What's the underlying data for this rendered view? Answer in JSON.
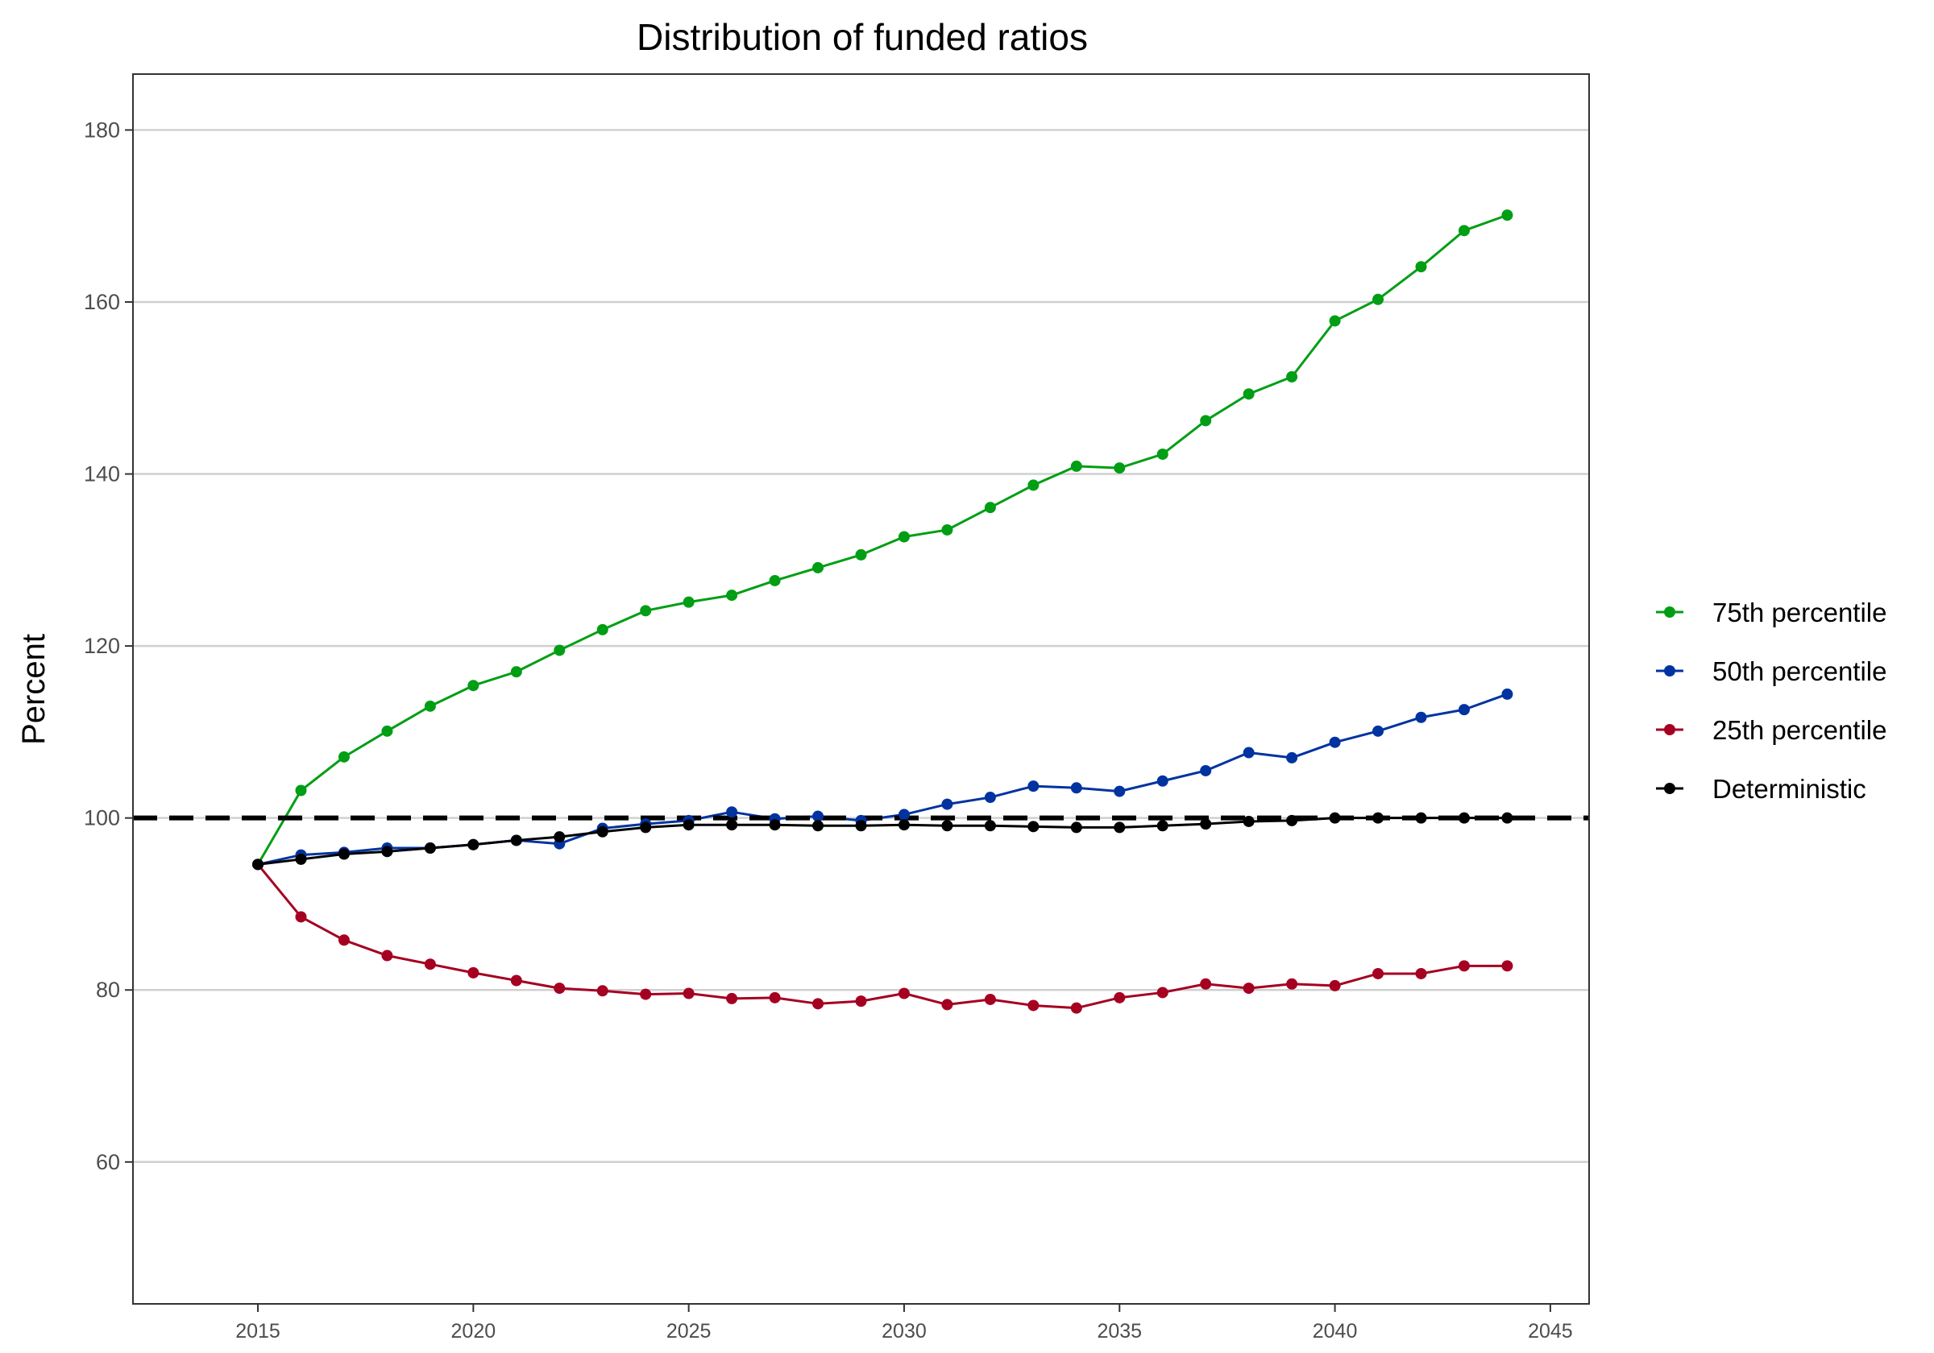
{
  "chart_data": {
    "type": "line",
    "title": "Distribution of funded ratios",
    "xlabel": "",
    "ylabel": "Percent",
    "xlim": [
      2012.1,
      2045.9
    ],
    "ylim": [
      43.5,
      186.5
    ],
    "x_ticks": [
      2015,
      2020,
      2025,
      2030,
      2035,
      2040,
      2045
    ],
    "y_ticks": [
      60,
      80,
      100,
      120,
      140,
      160,
      180
    ],
    "grid": "horizontal major",
    "legend_position": "right",
    "reference_line": {
      "y": 100,
      "style": "dashed"
    },
    "x": [
      2015,
      2016,
      2017,
      2018,
      2019,
      2020,
      2021,
      2022,
      2023,
      2024,
      2025,
      2026,
      2027,
      2028,
      2029,
      2030,
      2031,
      2032,
      2033,
      2034,
      2035,
      2036,
      2037,
      2038,
      2039,
      2040,
      2041,
      2042,
      2043,
      2044
    ],
    "series": [
      {
        "name": "75th percentile",
        "color": "#009E14",
        "values": [
          94.6,
          103.2,
          107.1,
          110.1,
          113.0,
          115.4,
          117.0,
          119.5,
          121.9,
          124.1,
          125.1,
          125.9,
          127.6,
          129.1,
          130.6,
          132.7,
          133.5,
          136.1,
          138.7,
          140.9,
          140.7,
          142.3,
          146.2,
          149.3,
          151.3,
          157.8,
          160.3,
          164.1,
          168.3,
          170.1
        ]
      },
      {
        "name": "50th percentile",
        "color": "#0033A0",
        "values": [
          94.6,
          95.7,
          96.0,
          96.5,
          96.5,
          96.9,
          97.4,
          97.0,
          98.8,
          99.3,
          99.7,
          100.7,
          99.9,
          100.2,
          99.7,
          100.4,
          101.6,
          102.4,
          103.7,
          103.5,
          103.1,
          104.3,
          105.5,
          107.6,
          107.0,
          108.8,
          110.1,
          111.7,
          112.6,
          114.4
        ]
      },
      {
        "name": "25th percentile",
        "color": "#A50021",
        "values": [
          94.6,
          88.5,
          85.8,
          84.0,
          83.0,
          82.0,
          81.1,
          80.2,
          79.9,
          79.5,
          79.6,
          79.0,
          79.1,
          78.4,
          78.7,
          79.6,
          78.3,
          78.9,
          78.2,
          77.9,
          79.1,
          79.7,
          80.7,
          80.2,
          80.7,
          80.5,
          81.9,
          81.9,
          82.8,
          82.8
        ]
      },
      {
        "name": "Deterministic",
        "color": "#000000",
        "values": [
          94.6,
          95.2,
          95.8,
          96.1,
          96.5,
          96.9,
          97.4,
          97.8,
          98.4,
          98.9,
          99.2,
          99.2,
          99.2,
          99.1,
          99.1,
          99.2,
          99.1,
          99.1,
          99.0,
          98.9,
          98.9,
          99.1,
          99.3,
          99.6,
          99.7,
          100.0,
          100.0,
          100.0,
          100.0,
          100.0
        ]
      }
    ]
  }
}
